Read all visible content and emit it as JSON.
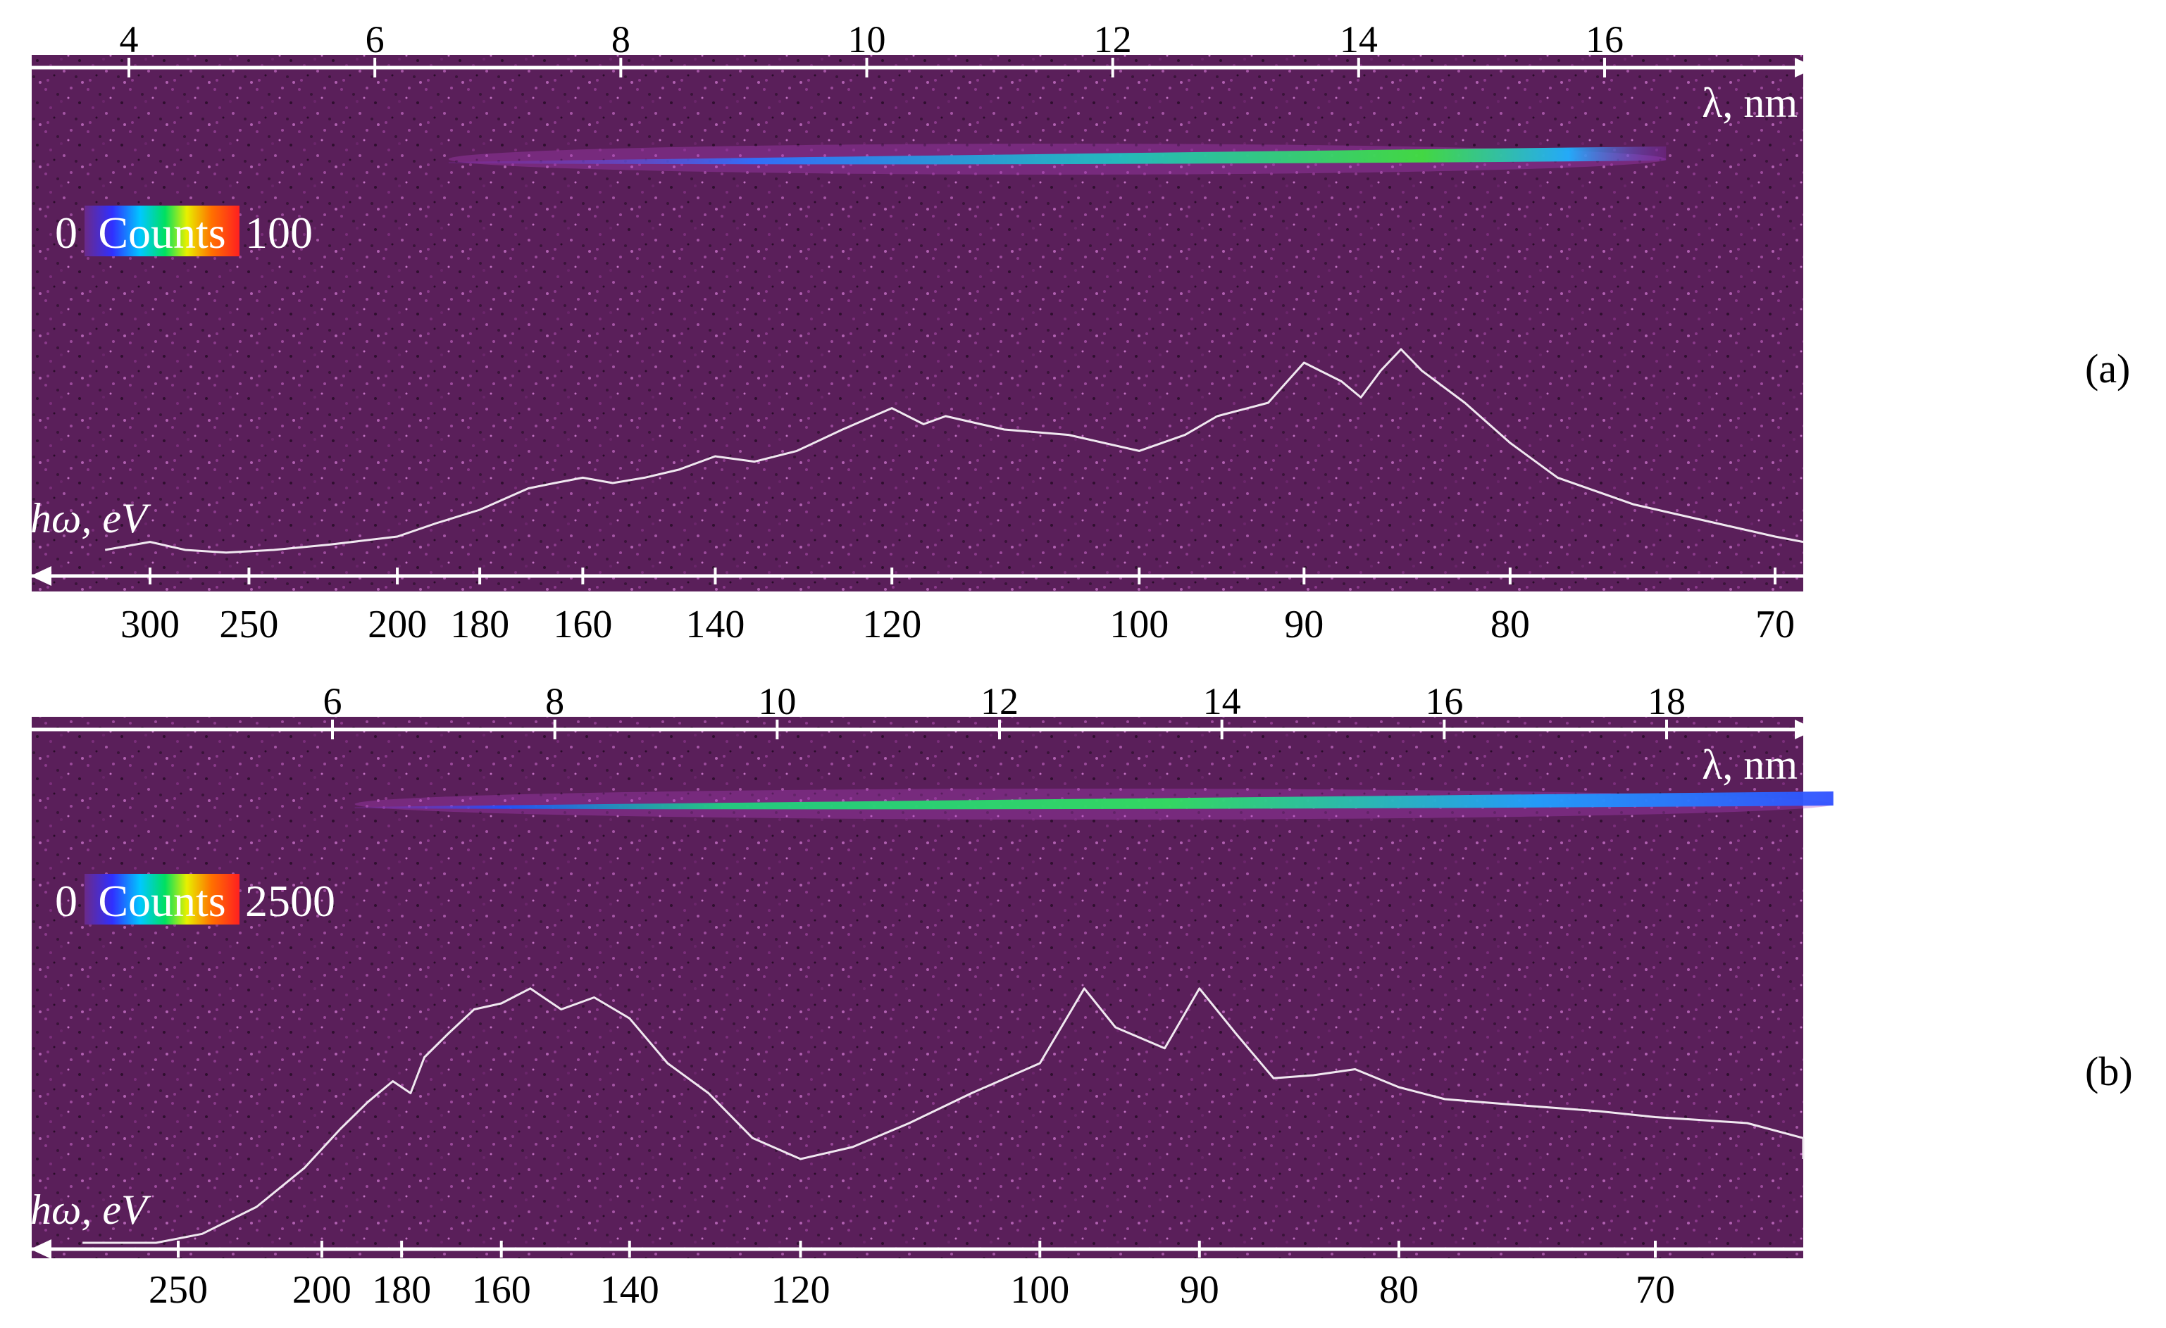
{
  "colors": {
    "background": "#5a1f5a",
    "trace": "#f0e8f0",
    "axis_top": "#ffffff",
    "axis_bottom": "#ffffff",
    "label_text_on_plot": "#ffffff",
    "outside_text": "#000000"
  },
  "chart_data": [
    {
      "type": "line",
      "panel_label": "(a)",
      "xlabel_top": "λ, nm",
      "xlabel_bottom": "hω, eV",
      "top_ticks": [
        "4",
        "6",
        "8",
        "10",
        "12",
        "14",
        "16"
      ],
      "top_tick_values": [
        4,
        6,
        8,
        10,
        12,
        14,
        16
      ],
      "bottom_ticks": [
        "300",
        "250",
        "200",
        "180",
        "160",
        "140",
        "120",
        "100",
        "90",
        "80",
        "70"
      ],
      "bottom_tick_values": [
        300,
        250,
        200,
        180,
        160,
        140,
        120,
        100,
        90,
        80,
        70
      ],
      "colorbar": {
        "min_label": "0",
        "title": "Counts",
        "max_label": "100"
      },
      "streak": {
        "lambda_start": 6.6,
        "lambda_end": 16.5,
        "peak_lambda": 14.8
      },
      "spectrum": {
        "x_unit": "eV",
        "x": [
          330,
          300,
          280,
          260,
          240,
          220,
          200,
          190,
          180,
          170,
          165,
          160,
          155,
          150,
          145,
          140,
          135,
          130,
          125,
          120,
          117,
          115,
          110,
          105,
          100,
          97,
          95,
          92,
          90,
          88,
          87,
          86,
          85,
          84,
          82,
          80,
          78,
          75,
          72,
          70,
          67
        ],
        "y": [
          0.05,
          0.08,
          0.05,
          0.04,
          0.05,
          0.07,
          0.1,
          0.15,
          0.2,
          0.28,
          0.3,
          0.32,
          0.3,
          0.32,
          0.35,
          0.4,
          0.38,
          0.42,
          0.5,
          0.58,
          0.52,
          0.55,
          0.5,
          0.48,
          0.42,
          0.48,
          0.55,
          0.6,
          0.75,
          0.68,
          0.62,
          0.72,
          0.8,
          0.72,
          0.6,
          0.45,
          0.32,
          0.22,
          0.15,
          0.1,
          0.08
        ]
      }
    },
    {
      "type": "line",
      "panel_label": "(b)",
      "xlabel_top": "λ, nm",
      "xlabel_bottom": "hω, eV",
      "top_ticks": [
        "6",
        "8",
        "10",
        "12",
        "14",
        "16",
        "18"
      ],
      "top_tick_values": [
        6,
        8,
        10,
        12,
        14,
        16,
        18
      ],
      "bottom_ticks": [
        "250",
        "200",
        "180",
        "160",
        "140",
        "120",
        "100",
        "90",
        "80",
        "70"
      ],
      "bottom_tick_values": [
        250,
        200,
        180,
        160,
        140,
        120,
        100,
        90,
        80,
        70
      ],
      "colorbar": {
        "min_label": "0",
        "title": "Counts",
        "max_label": "2500"
      },
      "streak": {
        "lambda_start": 6.2,
        "lambda_end": 19.5,
        "peak_lambda": 13.5
      },
      "spectrum": {
        "x_unit": "eV",
        "x": [
          300,
          260,
          240,
          220,
          205,
          195,
          188,
          182,
          178,
          175,
          170,
          165,
          160,
          155,
          150,
          145,
          140,
          135,
          130,
          125,
          120,
          115,
          110,
          105,
          100,
          97,
          95,
          92,
          90,
          88,
          86,
          84,
          82,
          80,
          78,
          75,
          72,
          70,
          67,
          65,
          62
        ],
        "y": [
          0.0,
          0.0,
          0.03,
          0.12,
          0.25,
          0.38,
          0.47,
          0.54,
          0.5,
          0.62,
          0.7,
          0.78,
          0.8,
          0.85,
          0.78,
          0.82,
          0.75,
          0.6,
          0.5,
          0.35,
          0.28,
          0.32,
          0.4,
          0.5,
          0.6,
          0.85,
          0.72,
          0.65,
          0.85,
          0.7,
          0.55,
          0.56,
          0.58,
          0.52,
          0.48,
          0.46,
          0.44,
          0.42,
          0.4,
          0.35,
          0.28
        ]
      }
    }
  ]
}
